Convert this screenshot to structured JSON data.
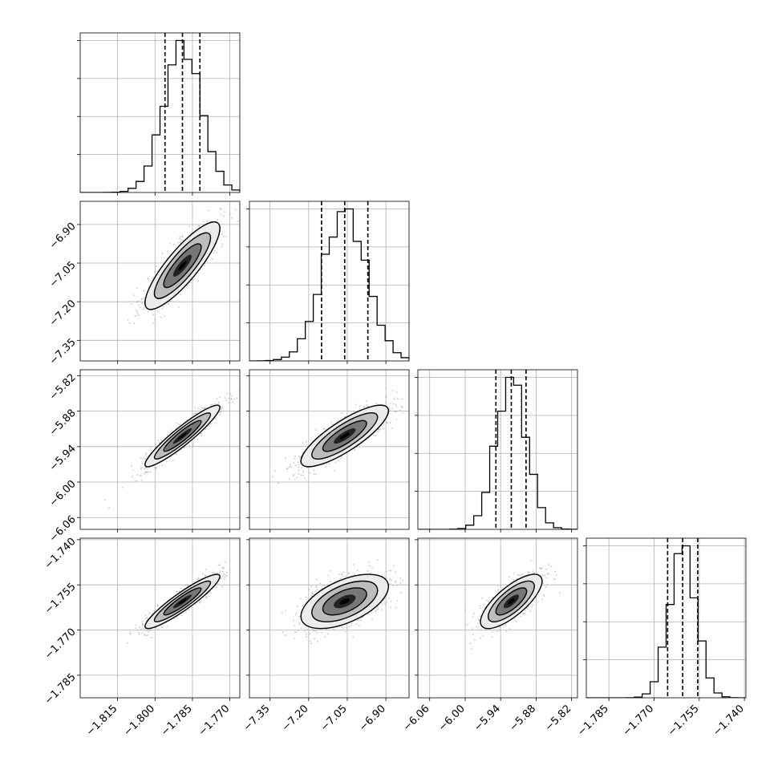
{
  "chart_data": {
    "type": "corner",
    "parameters": [
      {
        "center": -1.789,
        "sigma": 0.0075,
        "range": [
          -1.83,
          -1.766
        ],
        "ticks": [
          -1.815,
          -1.8,
          -1.785,
          -1.77
        ],
        "tick_labels": [
          "−1.815",
          "−1.800",
          "−1.785",
          "−1.770"
        ],
        "quantiles": [
          -1.796,
          -1.789,
          -1.782
        ]
      },
      {
        "center": -7.06,
        "sigma": 0.085,
        "range": [
          -7.43,
          -6.81
        ],
        "ticks": [
          -7.35,
          -7.2,
          -7.05,
          -6.9
        ],
        "tick_labels": [
          "−7.35",
          "−7.20",
          "−7.05",
          "−6.90"
        ],
        "quantiles": [
          -7.15,
          -7.06,
          -6.97
        ]
      },
      {
        "center": -5.922,
        "sigma": 0.026,
        "range": [
          -6.08,
          -5.81
        ],
        "ticks": [
          -6.06,
          -6.0,
          -5.94,
          -5.88,
          -5.82
        ],
        "tick_labels": [
          "−6.06",
          "−6.00",
          "−5.94",
          "−5.88",
          "−5.82"
        ],
        "quantiles": [
          -5.948,
          -5.922,
          -5.897
        ]
      },
      {
        "center": -1.7605,
        "sigma": 0.0045,
        "range": [
          -1.7925,
          -1.7395
        ],
        "ticks": [
          -1.785,
          -1.77,
          -1.755,
          -1.74
        ],
        "tick_labels": [
          "−1.785",
          "−1.770",
          "−1.755",
          "−1.740"
        ],
        "quantiles": [
          -1.7655,
          -1.7605,
          -1.7555
        ]
      }
    ],
    "correlations": {
      "1-0": 0.85,
      "2-0": 0.93,
      "2-1": 0.82,
      "3-0": 0.92,
      "3-1": 0.55,
      "3-2": 0.75
    },
    "contour_levels_sigma": [
      0.5,
      1.0,
      1.5,
      2.0
    ],
    "grid": true
  }
}
